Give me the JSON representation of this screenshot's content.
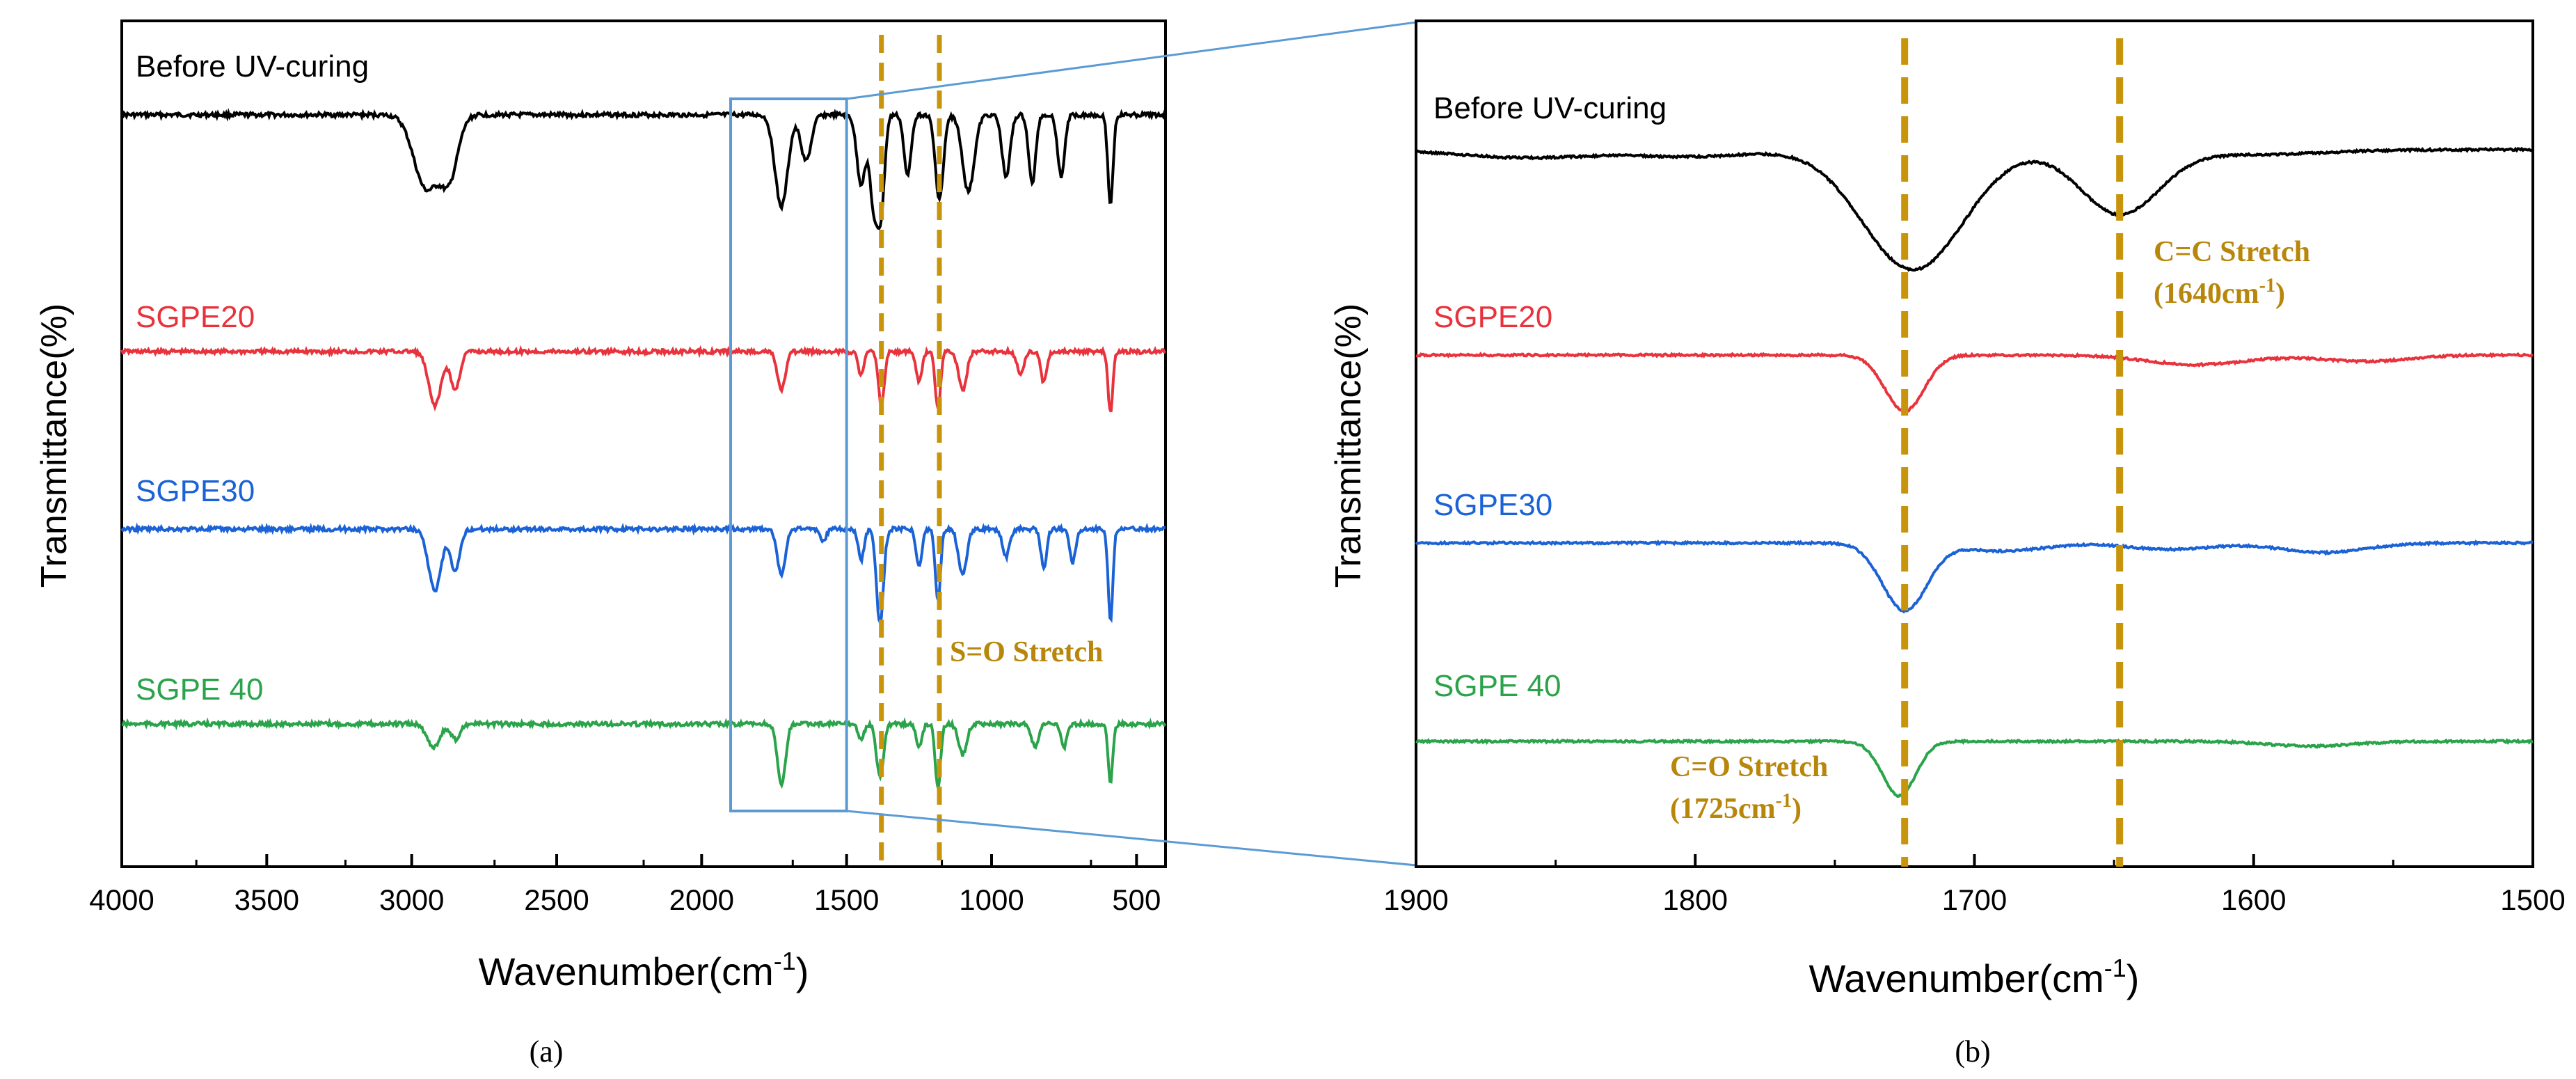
{
  "chart_data": [
    {
      "type": "line",
      "panel_label": "(a)",
      "xlabel": "Wavenumber(cm",
      "xlabel_sup": "-1",
      "xlabel_tail": ")",
      "ylabel": "Transmittance(%)",
      "xlim": [
        4000,
        400
      ],
      "x_reversed": true,
      "x_ticks": [
        4000,
        3500,
        3000,
        2500,
        2000,
        1500,
        1000,
        500
      ],
      "grid": false,
      "legend": "none",
      "series": [
        {
          "name": "Before UV-curing",
          "color": "#000000",
          "baseline": 0.0,
          "peaks": [
            [
              2950,
              42,
              0.48
            ],
            [
              2870,
              30,
              0.38
            ],
            [
              1725,
              22,
              0.6
            ],
            [
              1640,
              18,
              0.3
            ],
            [
              1450,
              15,
              0.45
            ],
            [
              1405,
              14,
              0.62
            ],
            [
              1380,
              12,
              0.55
            ],
            [
              1290,
              12,
              0.4
            ],
            [
              1180,
              14,
              0.55
            ],
            [
              1080,
              20,
              0.5
            ],
            [
              950,
              14,
              0.4
            ],
            [
              860,
              12,
              0.45
            ],
            [
              760,
              12,
              0.4
            ],
            [
              590,
              9,
              0.58
            ]
          ]
        },
        {
          "name": "SGPE20",
          "color": "#e8323c",
          "baseline": 0.0,
          "peaks": [
            [
              2920,
              22,
              0.35
            ],
            [
              2850,
              16,
              0.25
            ],
            [
              1725,
              14,
              0.25
            ],
            [
              1450,
              10,
              0.15
            ],
            [
              1380,
              10,
              0.35
            ],
            [
              1250,
              10,
              0.2
            ],
            [
              1185,
              9,
              0.38
            ],
            [
              1100,
              14,
              0.25
            ],
            [
              900,
              12,
              0.15
            ],
            [
              820,
              10,
              0.2
            ],
            [
              590,
              8,
              0.4
            ]
          ]
        },
        {
          "name": "SGPE30",
          "color": "#1b62d6",
          "baseline": 0.0,
          "peaks": [
            [
              2920,
              22,
              0.4
            ],
            [
              2850,
              16,
              0.28
            ],
            [
              1725,
              14,
              0.3
            ],
            [
              1580,
              10,
              0.08
            ],
            [
              1450,
              10,
              0.2
            ],
            [
              1385,
              12,
              0.62
            ],
            [
              1250,
              10,
              0.25
            ],
            [
              1185,
              9,
              0.48
            ],
            [
              1100,
              14,
              0.3
            ],
            [
              950,
              12,
              0.18
            ],
            [
              820,
              10,
              0.25
            ],
            [
              720,
              10,
              0.22
            ],
            [
              590,
              8,
              0.6
            ]
          ]
        },
        {
          "name": "SGPE 40",
          "color": "#2aa34a",
          "baseline": 0.0,
          "peaks": [
            [
              2925,
              22,
              0.15
            ],
            [
              2850,
              16,
              0.1
            ],
            [
              1725,
              14,
              0.4
            ],
            [
              1450,
              10,
              0.1
            ],
            [
              1385,
              12,
              0.35
            ],
            [
              1250,
              10,
              0.15
            ],
            [
              1185,
              9,
              0.42
            ],
            [
              1100,
              14,
              0.2
            ],
            [
              850,
              12,
              0.15
            ],
            [
              750,
              10,
              0.15
            ],
            [
              590,
              8,
              0.38
            ]
          ]
        }
      ],
      "annotations": [
        {
          "text": "S=O Stretch",
          "color": "#b8860b"
        }
      ],
      "marker_lines": [
        1380,
        1180
      ],
      "zoom_box_x": [
        1900,
        1500
      ]
    },
    {
      "type": "line",
      "panel_label": "(b)",
      "xlabel": "Wavenumber(cm",
      "xlabel_sup": "-1",
      "xlabel_tail": ")",
      "ylabel": "Transmittance(%)",
      "xlim": [
        1900,
        1500
      ],
      "x_reversed": true,
      "x_ticks": [
        1900,
        1800,
        1700,
        1600,
        1500
      ],
      "grid": false,
      "legend": "none",
      "series": [
        {
          "name": "Before UV-curing",
          "color": "#000000",
          "peaks": [
            [
              1722,
              18,
              0.75
            ],
            [
              1648,
              14,
              0.4
            ],
            [
              1860,
              25,
              0.05
            ],
            [
              1800,
              20,
              0.04
            ],
            [
              1600,
              25,
              0.03
            ]
          ]
        },
        {
          "name": "SGPE20",
          "color": "#e8323c",
          "peaks": [
            [
              1725,
              7,
              0.35
            ],
            [
              1620,
              18,
              0.06
            ],
            [
              1560,
              15,
              0.04
            ]
          ]
        },
        {
          "name": "SGPE30",
          "color": "#1b62d6",
          "peaks": [
            [
              1725,
              8,
              0.42
            ],
            [
              1690,
              15,
              0.05
            ],
            [
              1630,
              15,
              0.04
            ],
            [
              1575,
              15,
              0.06
            ]
          ]
        },
        {
          "name": "SGPE 40",
          "color": "#2aa34a",
          "peaks": [
            [
              1727,
              6,
              0.34
            ],
            [
              1580,
              15,
              0.03
            ]
          ]
        }
      ],
      "annotations": [
        {
          "line1": "C=C Stretch",
          "line2a": "(1640cm",
          "line2sup": "-1",
          "line2b": ")",
          "color": "#b8860b"
        },
        {
          "line1": "C=O Stretch",
          "line2a": "(1725cm",
          "line2sup": "-1",
          "line2b": ")",
          "color": "#b8860b"
        }
      ],
      "marker_lines": [
        1725,
        1648
      ]
    }
  ],
  "colors": {
    "marker": "#c8940c",
    "zoom": "#5b9bd5",
    "axis": "#000000"
  }
}
